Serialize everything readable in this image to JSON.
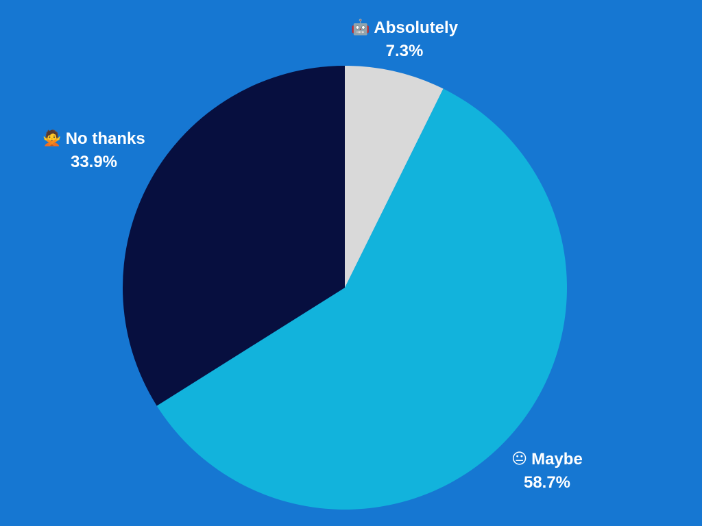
{
  "chart_data": {
    "type": "pie",
    "title": "",
    "legend": "none",
    "slices": [
      {
        "name": "Absolutely",
        "value": 7.3,
        "label": "7.3%",
        "icon": "robot-face-icon",
        "glyph": "🤖",
        "color": "#d9d9d9"
      },
      {
        "name": "Maybe",
        "value": 58.7,
        "label": "58.7%",
        "icon": "neutral-face-icon",
        "glyph": "😐",
        "color": "#12b3dc"
      },
      {
        "name": "No thanks",
        "value": 33.9,
        "label": "33.9%",
        "icon": "person-gesturing-no-icon",
        "glyph": "🙅",
        "color": "#070f3f"
      }
    ]
  },
  "colors": {
    "background": "#1677d2",
    "label_text": "#ffffff"
  }
}
